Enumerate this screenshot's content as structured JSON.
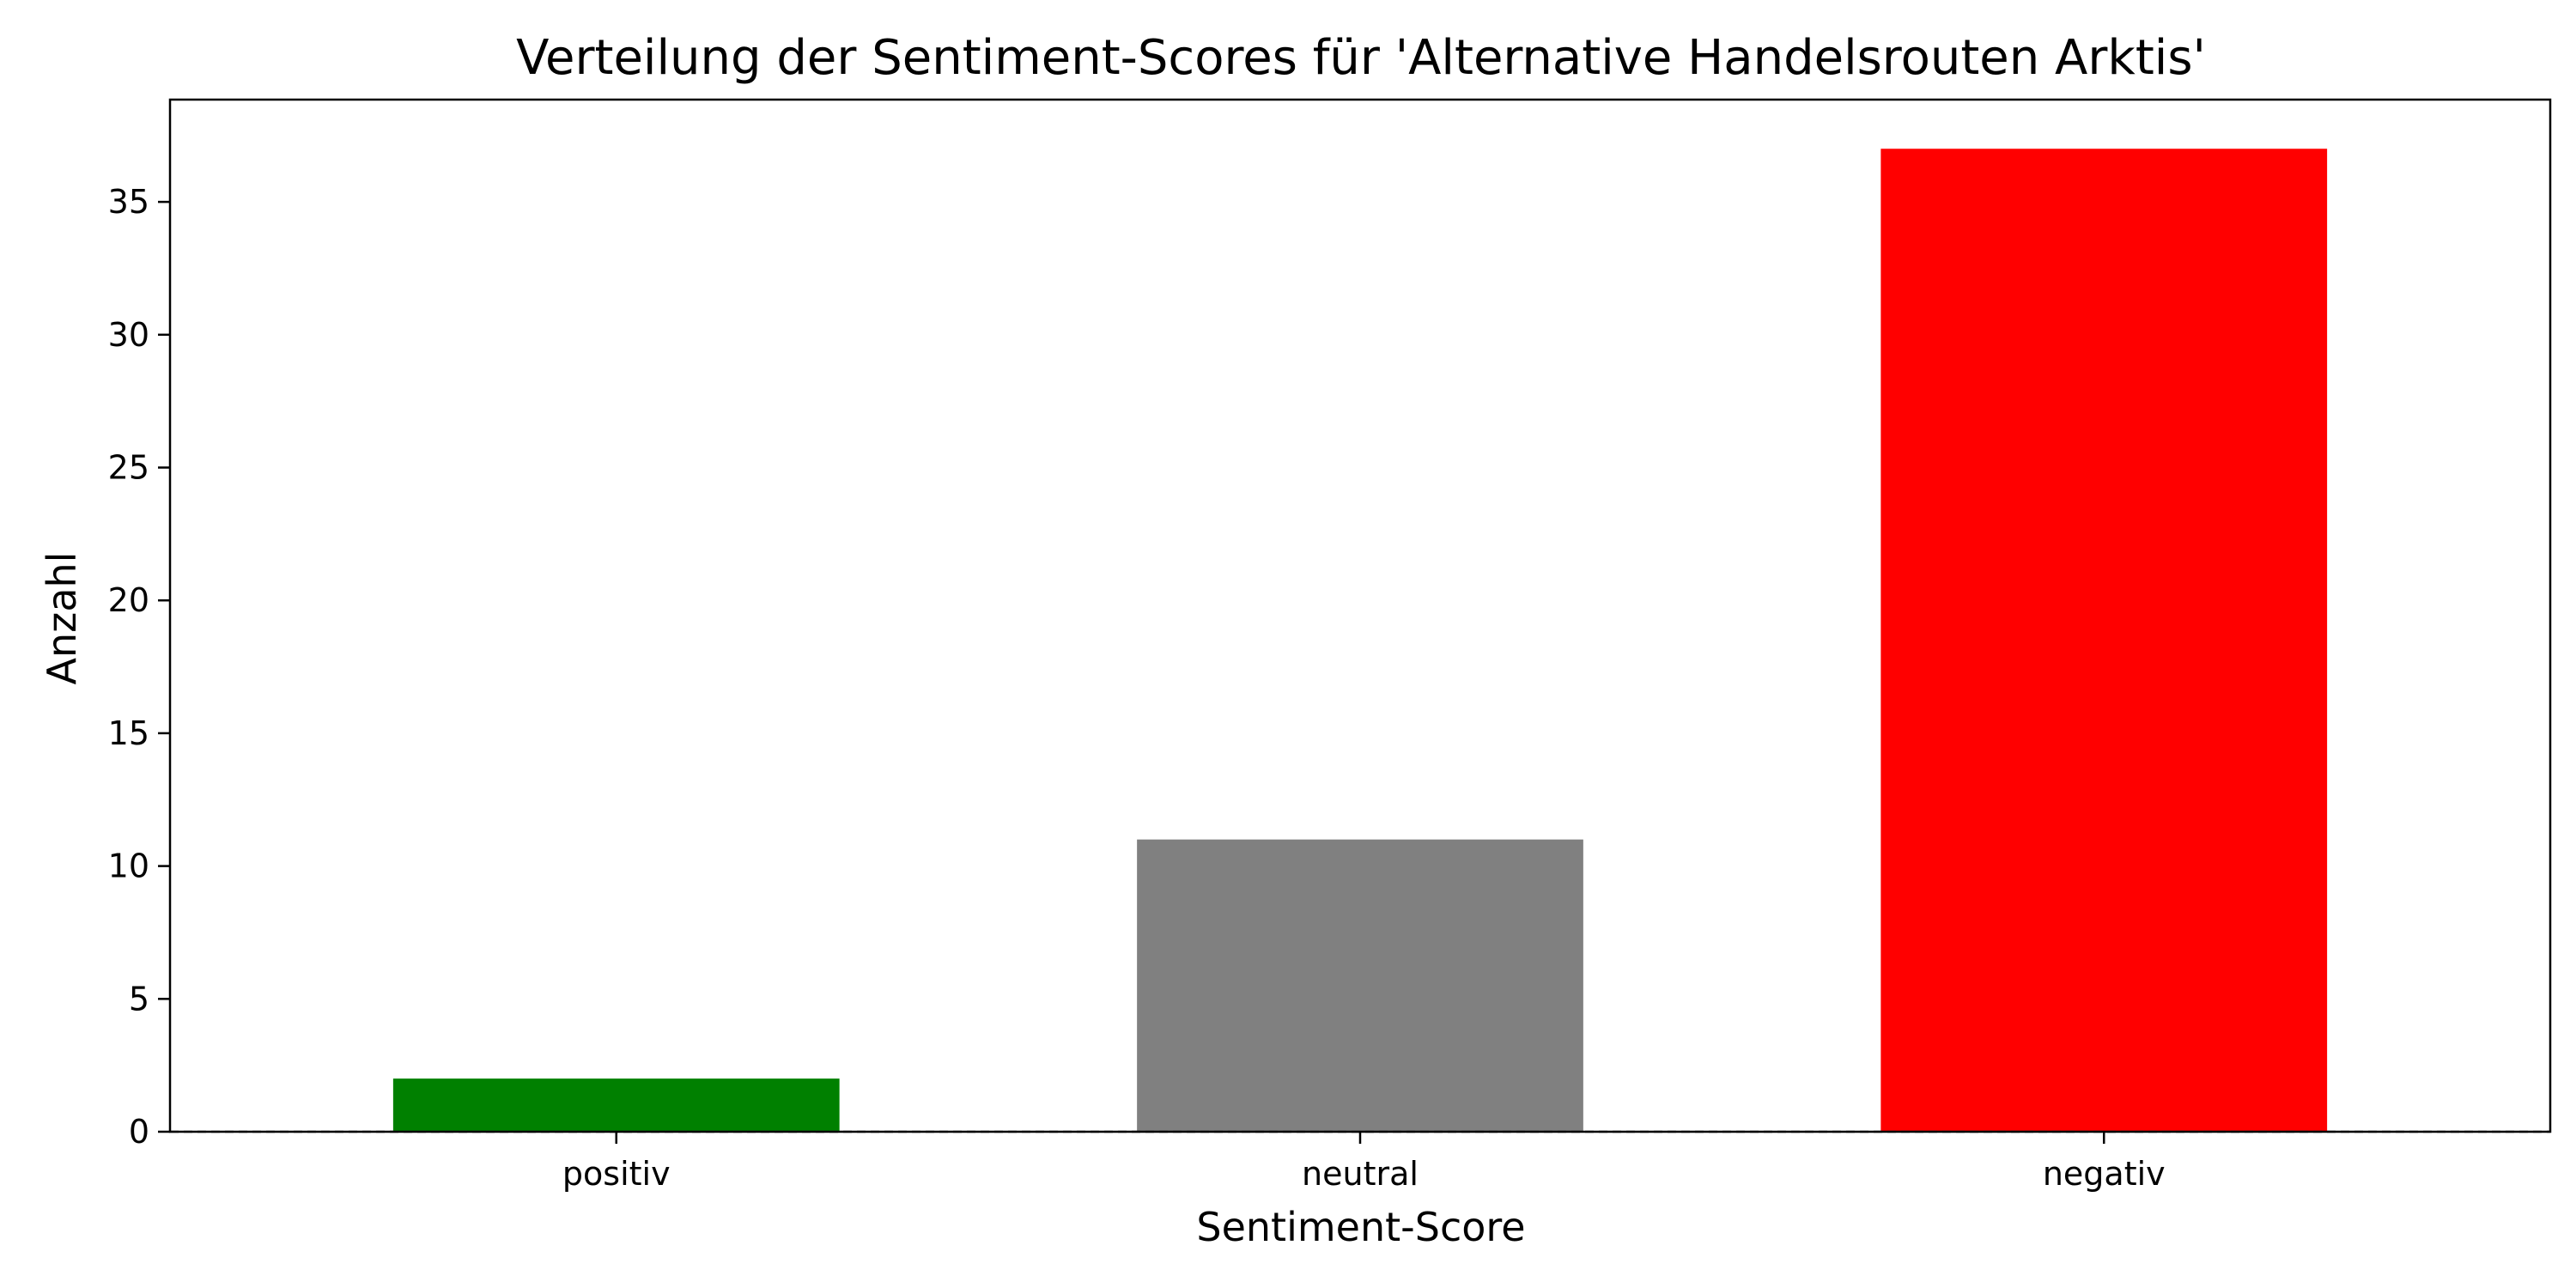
{
  "chart_data": {
    "type": "bar",
    "title": "Verteilung der Sentiment-Scores für 'Alternative Handelsrouten Arktis'",
    "xlabel": "Sentiment-Score",
    "ylabel": "Anzahl",
    "categories": [
      "positiv",
      "neutral",
      "negativ"
    ],
    "values": [
      2,
      11,
      37
    ],
    "colors": [
      "#008000",
      "#808080",
      "#ff0000"
    ],
    "ylim": [
      0,
      38.85
    ],
    "yticks": [
      0,
      5,
      10,
      15,
      20,
      25,
      30,
      35
    ],
    "grid": false,
    "legend": false,
    "reference_line": {
      "y": 0,
      "style": "dashed"
    }
  }
}
